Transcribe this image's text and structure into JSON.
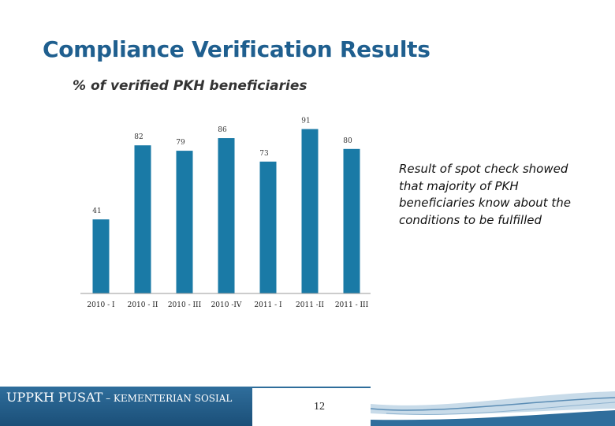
{
  "slide": {
    "title": "Compliance Verification Results",
    "note": "Result of spot check showed  that majority of PKH beneficiaries know about the conditions to be fulfilled",
    "footer_major": "UPPKH PUSAT",
    "footer_minor": " – KEMENTERIAN SOSIAL",
    "page_number": "12"
  },
  "colors": {
    "title": "#1f5f8f",
    "bar": "#1a7aa6",
    "footer": "#1f5a86"
  },
  "chart_data": {
    "type": "bar",
    "title": "% of verified PKH beneficiaries",
    "categories": [
      "2010 - I",
      "2010 - II",
      "2010 - III",
      "2010 -IV",
      "2011 - I",
      "2011 -II",
      "2011 - III"
    ],
    "values": [
      41,
      82,
      79,
      86,
      73,
      91,
      80
    ],
    "data_labels": [
      "41",
      "82",
      "79",
      "86",
      "73",
      "91",
      "80"
    ],
    "ylim": [
      0,
      100
    ],
    "grid": false,
    "legend": "none"
  }
}
